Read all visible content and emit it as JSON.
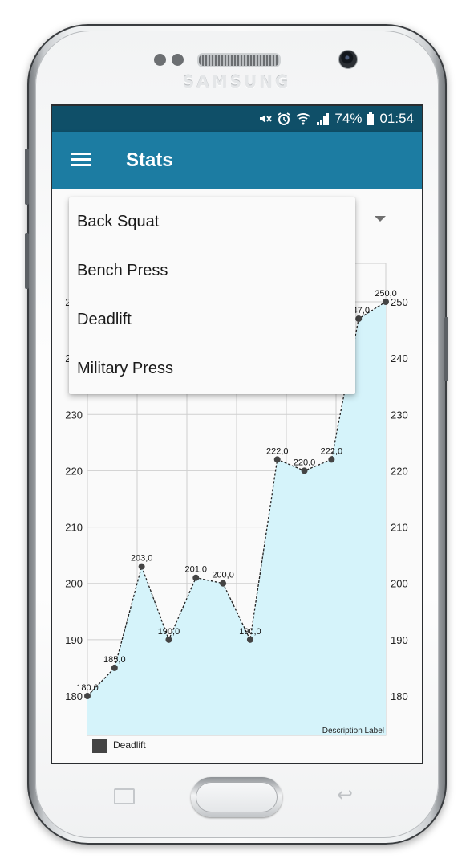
{
  "device": {
    "brand": "SAMSUNG"
  },
  "status_bar": {
    "battery": "74%",
    "time": "01:54"
  },
  "toolbar": {
    "title": "Stats"
  },
  "dropdown": {
    "options": [
      "Back Squat",
      "Bench Press",
      "Deadlift",
      "Military Press"
    ]
  },
  "chart_data": {
    "type": "line",
    "series": [
      {
        "name": "Deadlift",
        "values": [
          180,
          185,
          203,
          190,
          201,
          200,
          190,
          222,
          220,
          222,
          247,
          250
        ],
        "labels": [
          "180,0",
          "185,0",
          "203,0",
          "190,0",
          "201,0",
          "200,0",
          "190,0",
          "222,0",
          "220,0",
          "222,0",
          "247,0",
          "250,0"
        ]
      }
    ],
    "y_ticks": [
      180,
      190,
      200,
      210,
      220,
      230,
      240,
      250
    ],
    "ylim": [
      180,
      250
    ],
    "description": "Description Label",
    "fill_color": "#d5f3fa",
    "line_color": "#222222",
    "grid": true
  }
}
